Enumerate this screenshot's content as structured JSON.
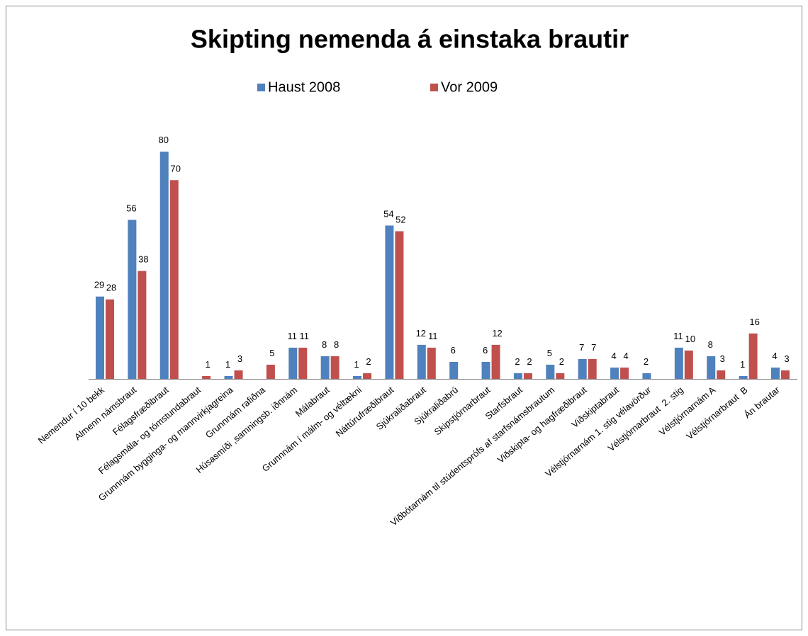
{
  "chart_data": {
    "type": "bar",
    "title": "Skipting nemenda á einstaka brautir",
    "categories": [
      "Nemendur í 10 bekk",
      "Almenn námsbraut",
      "Félagsfræðibraut",
      "Félagsmála- og tómstundabraut",
      "Grunnnám bygginga- og mannvirkjagreina",
      "Grunnnám rafiðna",
      "Húsasmíði ,samningsb. iðnnám",
      "Málabraut",
      "Grunnnám í málm- og véltækni",
      "Náttúrufræðibraut",
      "Sjúkraliðabraut",
      "Sjúkraliðabrú",
      "Skipstjórnarbraut",
      "Starfsbraut",
      "Viðbótarnám til stúdentsprófs af starfsnámsbrautum",
      "Viðskipta- og hagfræðibraut",
      "Viðskiptabraut",
      "Vélstjórnarnám 1. stig vélavörður",
      "Vélstjórnarbraut  2. stig",
      "Vélstjórnarnám A",
      "Vélstjórnarbraut  B",
      "Án brautar"
    ],
    "series": [
      {
        "name": "Haust 2008",
        "color": "#4f81bd",
        "values": [
          29,
          56,
          80,
          null,
          1,
          null,
          11,
          8,
          1,
          54,
          12,
          6,
          6,
          2,
          5,
          7,
          4,
          2,
          11,
          8,
          1,
          4
        ]
      },
      {
        "name": "Vor 2009",
        "color": "#c0504d",
        "values": [
          28,
          38,
          70,
          1,
          3,
          5,
          11,
          8,
          2,
          52,
          11,
          null,
          12,
          2,
          2,
          7,
          4,
          null,
          10,
          3,
          16,
          3
        ]
      }
    ],
    "legend": "top"
  }
}
